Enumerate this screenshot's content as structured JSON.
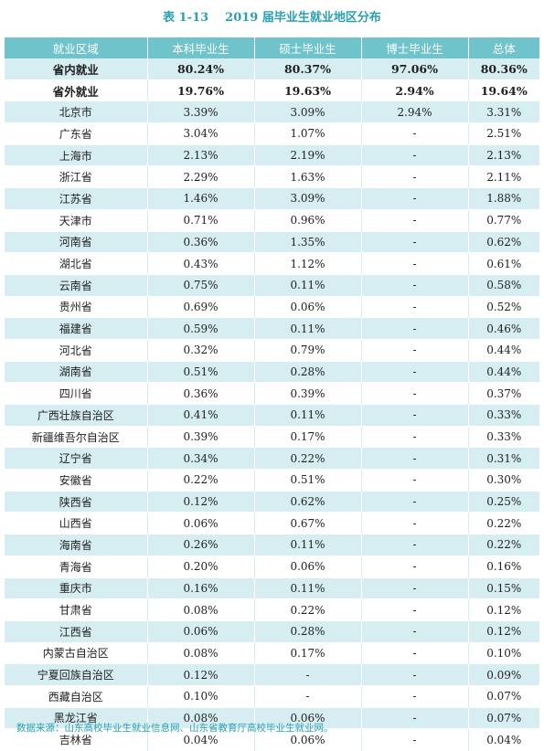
{
  "title": {
    "number": "表 1-13",
    "text": "2019 届毕业生就业地区分布"
  },
  "table": {
    "headers": [
      "就业区域",
      "本科毕业生",
      "硕士毕业生",
      "博士毕业生",
      "总体"
    ],
    "rows": [
      {
        "region": "省内就业",
        "bachelor": "80.24%",
        "master": "80.37%",
        "doctor": "97.06%",
        "total": "80.36%",
        "bold": true
      },
      {
        "region": "省外就业",
        "bachelor": "19.76%",
        "master": "19.63%",
        "doctor": "2.94%",
        "total": "19.64%",
        "bold": true
      },
      {
        "region": "北京市",
        "bachelor": "3.39%",
        "master": "3.09%",
        "doctor": "2.94%",
        "total": "3.31%"
      },
      {
        "region": "广东省",
        "bachelor": "3.04%",
        "master": "1.07%",
        "doctor": "-",
        "total": "2.51%"
      },
      {
        "region": "上海市",
        "bachelor": "2.13%",
        "master": "2.19%",
        "doctor": "-",
        "total": "2.13%"
      },
      {
        "region": "浙江省",
        "bachelor": "2.29%",
        "master": "1.63%",
        "doctor": "-",
        "total": "2.11%"
      },
      {
        "region": "江苏省",
        "bachelor": "1.46%",
        "master": "3.09%",
        "doctor": "-",
        "total": "1.88%"
      },
      {
        "region": "天津市",
        "bachelor": "0.71%",
        "master": "0.96%",
        "doctor": "-",
        "total": "0.77%"
      },
      {
        "region": "河南省",
        "bachelor": "0.36%",
        "master": "1.35%",
        "doctor": "-",
        "total": "0.62%"
      },
      {
        "region": "湖北省",
        "bachelor": "0.43%",
        "master": "1.12%",
        "doctor": "-",
        "total": "0.61%"
      },
      {
        "region": "云南省",
        "bachelor": "0.75%",
        "master": "0.11%",
        "doctor": "-",
        "total": "0.58%"
      },
      {
        "region": "贵州省",
        "bachelor": "0.69%",
        "master": "0.06%",
        "doctor": "-",
        "total": "0.52%"
      },
      {
        "region": "福建省",
        "bachelor": "0.59%",
        "master": "0.11%",
        "doctor": "-",
        "total": "0.46%"
      },
      {
        "region": "河北省",
        "bachelor": "0.32%",
        "master": "0.79%",
        "doctor": "-",
        "total": "0.44%"
      },
      {
        "region": "湖南省",
        "bachelor": "0.51%",
        "master": "0.28%",
        "doctor": "-",
        "total": "0.44%"
      },
      {
        "region": "四川省",
        "bachelor": "0.36%",
        "master": "0.39%",
        "doctor": "-",
        "total": "0.37%"
      },
      {
        "region": "广西壮族自治区",
        "bachelor": "0.41%",
        "master": "0.11%",
        "doctor": "-",
        "total": "0.33%"
      },
      {
        "region": "新疆维吾尔自治区",
        "bachelor": "0.39%",
        "master": "0.17%",
        "doctor": "-",
        "total": "0.33%"
      },
      {
        "region": "辽宁省",
        "bachelor": "0.34%",
        "master": "0.22%",
        "doctor": "-",
        "total": "0.31%"
      },
      {
        "region": "安徽省",
        "bachelor": "0.22%",
        "master": "0.51%",
        "doctor": "-",
        "total": "0.30%"
      },
      {
        "region": "陕西省",
        "bachelor": "0.12%",
        "master": "0.62%",
        "doctor": "-",
        "total": "0.25%"
      },
      {
        "region": "山西省",
        "bachelor": "0.06%",
        "master": "0.67%",
        "doctor": "-",
        "total": "0.22%"
      },
      {
        "region": "海南省",
        "bachelor": "0.26%",
        "master": "0.11%",
        "doctor": "-",
        "total": "0.22%"
      },
      {
        "region": "青海省",
        "bachelor": "0.20%",
        "master": "0.06%",
        "doctor": "-",
        "total": "0.16%"
      },
      {
        "region": "重庆市",
        "bachelor": "0.16%",
        "master": "0.11%",
        "doctor": "-",
        "total": "0.15%"
      },
      {
        "region": "甘肃省",
        "bachelor": "0.08%",
        "master": "0.22%",
        "doctor": "-",
        "total": "0.12%"
      },
      {
        "region": "江西省",
        "bachelor": "0.06%",
        "master": "0.28%",
        "doctor": "-",
        "total": "0.12%"
      },
      {
        "region": "内蒙古自治区",
        "bachelor": "0.08%",
        "master": "0.17%",
        "doctor": "-",
        "total": "0.10%"
      },
      {
        "region": "宁夏回族自治区",
        "bachelor": "0.12%",
        "master": "-",
        "doctor": "-",
        "total": "0.09%"
      },
      {
        "region": "西藏自治区",
        "bachelor": "0.10%",
        "master": "-",
        "doctor": "-",
        "total": "0.07%"
      },
      {
        "region": "黑龙江省",
        "bachelor": "0.08%",
        "master": "0.06%",
        "doctor": "-",
        "total": "0.07%"
      },
      {
        "region": "吉林省",
        "bachelor": "0.04%",
        "master": "0.06%",
        "doctor": "-",
        "total": "0.04%"
      }
    ]
  },
  "source": "数据来源：山东高校毕业生就业信息网、山东省教育厅高校毕业生就业网。",
  "colors": {
    "title": "#2a9fb0",
    "header_bg": "#6fc3cb",
    "stripe_bg": "#d6eef1",
    "source_text": "#2a9fb0"
  }
}
